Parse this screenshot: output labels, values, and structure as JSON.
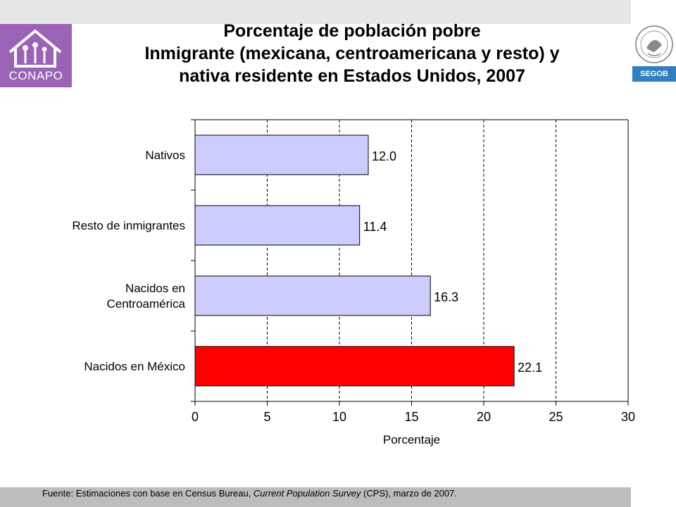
{
  "header": {
    "title_lines": [
      "Porcentaje de población pobre",
      "Inmigrante (mexicana, centroamericana y resto) y",
      "nativa residente en Estados Unidos, 2007"
    ]
  },
  "logos": {
    "left_text": "CONAPO",
    "right_text": "SEGOB",
    "left_color": "#9a63b7",
    "right_color": "#2f7fc1"
  },
  "chart_data": {
    "type": "bar",
    "orientation": "horizontal",
    "categories": [
      [
        "Nativos"
      ],
      [
        "Resto de inmigrantes"
      ],
      [
        "Nacidos en",
        "Centroamérica"
      ],
      [
        "Nacidos en México"
      ]
    ],
    "values": [
      12.0,
      11.4,
      16.3,
      22.1
    ],
    "value_labels": [
      "12.0",
      "11.4",
      "16.3",
      "22.1"
    ],
    "bar_colors": [
      "#ccccff",
      "#ccccff",
      "#ccccff",
      "#ff0000"
    ],
    "xlabel": "Porcentaje",
    "xlim": [
      0,
      30
    ],
    "xticks": [
      0,
      5,
      10,
      15,
      20,
      25,
      30
    ],
    "grid": "vertical dashed"
  },
  "footer": {
    "source_prefix": "Fuente: Estimaciones con base en Census Bureau, ",
    "source_italic": "Current Population Survey",
    "source_suffix": " (CPS), marzo de 2007."
  }
}
